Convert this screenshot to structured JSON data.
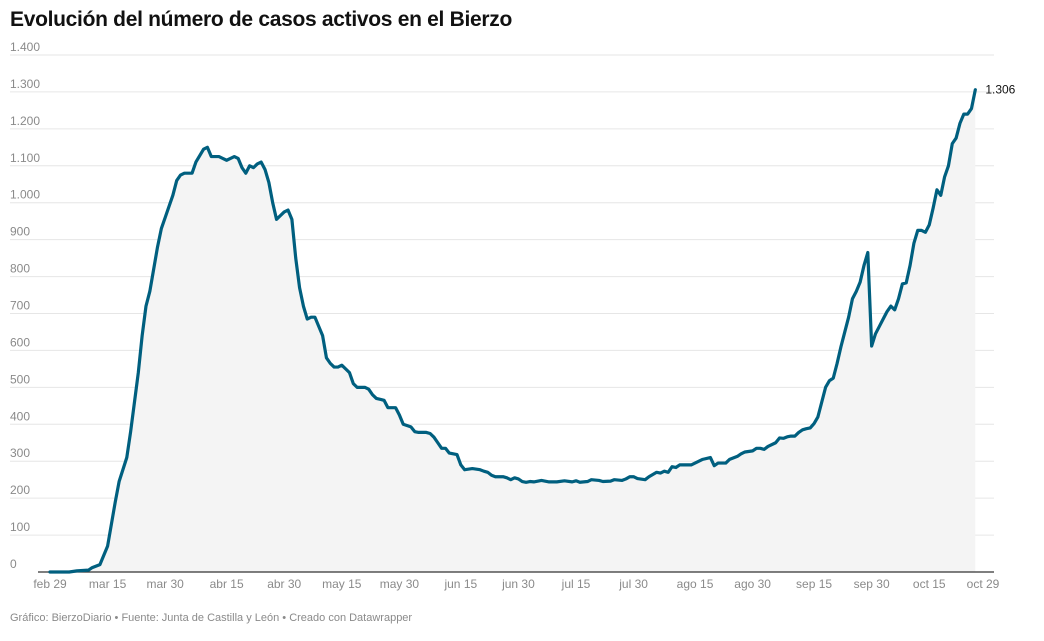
{
  "title": "Evolución del número de casos activos en el Bierzo",
  "footer": {
    "credit": "Gráfico: BierzoDiario",
    "source": "Fuente: Junta de Castilla y León",
    "tool": "Creado con Datawrapper",
    "separator": " • "
  },
  "colors": {
    "line": "#005f7f",
    "area": "#f4f4f4",
    "grid": "#e6e6e6",
    "axis": "#333333",
    "tick_text": "#8a8a8a"
  },
  "chart_data": {
    "type": "area",
    "title": "Evolución del número de casos activos en el Bierzo",
    "xlabel": "",
    "ylabel": "",
    "ylim": [
      0,
      1400
    ],
    "xlim": [
      "2020-02-29",
      "2020-10-29"
    ],
    "grid": true,
    "y_ticks": [
      0,
      100,
      200,
      300,
      400,
      500,
      600,
      700,
      800,
      900,
      1000,
      1100,
      1200,
      1300,
      1400
    ],
    "y_tick_labels": [
      "0",
      "100",
      "200",
      "300",
      "400",
      "500",
      "600",
      "700",
      "800",
      "900",
      "1.000",
      "1.100",
      "1.200",
      "1.300",
      "1.400"
    ],
    "x_ticks": [
      {
        "label": "feb 29",
        "date": "2020-02-29"
      },
      {
        "label": "mar 15",
        "date": "2020-03-15"
      },
      {
        "label": "mar 30",
        "date": "2020-03-30"
      },
      {
        "label": "abr 15",
        "date": "2020-04-15"
      },
      {
        "label": "abr 30",
        "date": "2020-04-30"
      },
      {
        "label": "may 15",
        "date": "2020-05-15"
      },
      {
        "label": "may 30",
        "date": "2020-05-30"
      },
      {
        "label": "jun 15",
        "date": "2020-06-15"
      },
      {
        "label": "jun 30",
        "date": "2020-06-30"
      },
      {
        "label": "jul 15",
        "date": "2020-07-15"
      },
      {
        "label": "jul 30",
        "date": "2020-07-30"
      },
      {
        "label": "ago 15",
        "date": "2020-08-15"
      },
      {
        "label": "ago 30",
        "date": "2020-08-30"
      },
      {
        "label": "sep 15",
        "date": "2020-09-15"
      },
      {
        "label": "sep 30",
        "date": "2020-09-30"
      },
      {
        "label": "oct 15",
        "date": "2020-10-15"
      },
      {
        "label": "oct 29",
        "date": "2020-10-29"
      }
    ],
    "series": [
      {
        "name": "",
        "points": [
          [
            "2020-02-29",
            0
          ],
          [
            "2020-03-05",
            0
          ],
          [
            "2020-03-07",
            3
          ],
          [
            "2020-03-10",
            5
          ],
          [
            "2020-03-11",
            12
          ],
          [
            "2020-03-13",
            20
          ],
          [
            "2020-03-15",
            70
          ],
          [
            "2020-03-16",
            130
          ],
          [
            "2020-03-17",
            190
          ],
          [
            "2020-03-18",
            245
          ],
          [
            "2020-03-20",
            310
          ],
          [
            "2020-03-21",
            380
          ],
          [
            "2020-03-22",
            460
          ],
          [
            "2020-03-23",
            540
          ],
          [
            "2020-03-24",
            640
          ],
          [
            "2020-03-25",
            720
          ],
          [
            "2020-03-26",
            760
          ],
          [
            "2020-03-27",
            820
          ],
          [
            "2020-03-28",
            880
          ],
          [
            "2020-03-29",
            930
          ],
          [
            "2020-03-30",
            960
          ],
          [
            "2020-03-31",
            990
          ],
          [
            "2020-04-01",
            1020
          ],
          [
            "2020-04-02",
            1060
          ],
          [
            "2020-04-03",
            1075
          ],
          [
            "2020-04-04",
            1080
          ],
          [
            "2020-04-06",
            1080
          ],
          [
            "2020-04-07",
            1110
          ],
          [
            "2020-04-09",
            1145
          ],
          [
            "2020-04-10",
            1150
          ],
          [
            "2020-04-11",
            1125
          ],
          [
            "2020-04-13",
            1125
          ],
          [
            "2020-04-14",
            1120
          ],
          [
            "2020-04-15",
            1115
          ],
          [
            "2020-04-16",
            1120
          ],
          [
            "2020-04-17",
            1125
          ],
          [
            "2020-04-18",
            1120
          ],
          [
            "2020-04-19",
            1095
          ],
          [
            "2020-04-20",
            1080
          ],
          [
            "2020-04-21",
            1100
          ],
          [
            "2020-04-22",
            1095
          ],
          [
            "2020-04-23",
            1105
          ],
          [
            "2020-04-24",
            1110
          ],
          [
            "2020-04-25",
            1090
          ],
          [
            "2020-04-26",
            1055
          ],
          [
            "2020-04-27",
            1000
          ],
          [
            "2020-04-28",
            955
          ],
          [
            "2020-04-29",
            965
          ],
          [
            "2020-04-30",
            975
          ],
          [
            "2020-05-01",
            980
          ],
          [
            "2020-05-02",
            955
          ],
          [
            "2020-05-03",
            850
          ],
          [
            "2020-05-04",
            770
          ],
          [
            "2020-05-05",
            720
          ],
          [
            "2020-05-06",
            685
          ],
          [
            "2020-05-07",
            690
          ],
          [
            "2020-05-08",
            690
          ],
          [
            "2020-05-09",
            665
          ],
          [
            "2020-05-10",
            640
          ],
          [
            "2020-05-11",
            580
          ],
          [
            "2020-05-12",
            565
          ],
          [
            "2020-05-13",
            555
          ],
          [
            "2020-05-14",
            555
          ],
          [
            "2020-05-15",
            560
          ],
          [
            "2020-05-16",
            550
          ],
          [
            "2020-05-17",
            540
          ],
          [
            "2020-05-18",
            510
          ],
          [
            "2020-05-19",
            500
          ],
          [
            "2020-05-21",
            500
          ],
          [
            "2020-05-22",
            495
          ],
          [
            "2020-05-23",
            480
          ],
          [
            "2020-05-24",
            470
          ],
          [
            "2020-05-26",
            465
          ],
          [
            "2020-05-27",
            445
          ],
          [
            "2020-05-29",
            445
          ],
          [
            "2020-05-30",
            425
          ],
          [
            "2020-05-31",
            400
          ],
          [
            "2020-06-02",
            393
          ],
          [
            "2020-06-03",
            380
          ],
          [
            "2020-06-04",
            378
          ],
          [
            "2020-06-06",
            378
          ],
          [
            "2020-06-07",
            375
          ],
          [
            "2020-06-08",
            365
          ],
          [
            "2020-06-09",
            350
          ],
          [
            "2020-06-10",
            335
          ],
          [
            "2020-06-11",
            335
          ],
          [
            "2020-06-12",
            322
          ],
          [
            "2020-06-14",
            318
          ],
          [
            "2020-06-15",
            290
          ],
          [
            "2020-06-16",
            277
          ],
          [
            "2020-06-18",
            280
          ],
          [
            "2020-06-20",
            277
          ],
          [
            "2020-06-21",
            273
          ],
          [
            "2020-06-22",
            270
          ],
          [
            "2020-06-23",
            262
          ],
          [
            "2020-06-24",
            258
          ],
          [
            "2020-06-26",
            258
          ],
          [
            "2020-06-27",
            255
          ],
          [
            "2020-06-28",
            250
          ],
          [
            "2020-06-29",
            255
          ],
          [
            "2020-06-30",
            252
          ],
          [
            "2020-07-01",
            245
          ],
          [
            "2020-07-02",
            243
          ],
          [
            "2020-07-03",
            245
          ],
          [
            "2020-07-04",
            244
          ],
          [
            "2020-07-06",
            248
          ],
          [
            "2020-07-08",
            244
          ],
          [
            "2020-07-10",
            244
          ],
          [
            "2020-07-12",
            247
          ],
          [
            "2020-07-14",
            244
          ],
          [
            "2020-07-15",
            247
          ],
          [
            "2020-07-16",
            243
          ],
          [
            "2020-07-18",
            245
          ],
          [
            "2020-07-19",
            250
          ],
          [
            "2020-07-21",
            248
          ],
          [
            "2020-07-22",
            245
          ],
          [
            "2020-07-24",
            246
          ],
          [
            "2020-07-25",
            250
          ],
          [
            "2020-07-27",
            248
          ],
          [
            "2020-07-28",
            252
          ],
          [
            "2020-07-29",
            258
          ],
          [
            "2020-07-30",
            258
          ],
          [
            "2020-07-31",
            253
          ],
          [
            "2020-08-02",
            250
          ],
          [
            "2020-08-03",
            258
          ],
          [
            "2020-08-05",
            270
          ],
          [
            "2020-08-06",
            268
          ],
          [
            "2020-08-07",
            273
          ],
          [
            "2020-08-08",
            270
          ],
          [
            "2020-08-09",
            285
          ],
          [
            "2020-08-10",
            283
          ],
          [
            "2020-08-11",
            290
          ],
          [
            "2020-08-14",
            290
          ],
          [
            "2020-08-15",
            295
          ],
          [
            "2020-08-17",
            305
          ],
          [
            "2020-08-19",
            310
          ],
          [
            "2020-08-20",
            288
          ],
          [
            "2020-08-21",
            295
          ],
          [
            "2020-08-23",
            295
          ],
          [
            "2020-08-24",
            305
          ],
          [
            "2020-08-26",
            313
          ],
          [
            "2020-08-27",
            320
          ],
          [
            "2020-08-28",
            325
          ],
          [
            "2020-08-30",
            328
          ],
          [
            "2020-08-31",
            335
          ],
          [
            "2020-09-01",
            335
          ],
          [
            "2020-09-02",
            332
          ],
          [
            "2020-09-03",
            340
          ],
          [
            "2020-09-05",
            350
          ],
          [
            "2020-09-06",
            363
          ],
          [
            "2020-09-07",
            362
          ],
          [
            "2020-09-08",
            366
          ],
          [
            "2020-09-09",
            368
          ],
          [
            "2020-09-10",
            368
          ],
          [
            "2020-09-11",
            378
          ],
          [
            "2020-09-12",
            385
          ],
          [
            "2020-09-13",
            388
          ],
          [
            "2020-09-14",
            390
          ],
          [
            "2020-09-15",
            402
          ],
          [
            "2020-09-16",
            420
          ],
          [
            "2020-09-17",
            460
          ],
          [
            "2020-09-18",
            500
          ],
          [
            "2020-09-19",
            518
          ],
          [
            "2020-09-20",
            525
          ],
          [
            "2020-09-21",
            565
          ],
          [
            "2020-09-22",
            610
          ],
          [
            "2020-09-23",
            650
          ],
          [
            "2020-09-24",
            690
          ],
          [
            "2020-09-25",
            740
          ],
          [
            "2020-09-26",
            760
          ],
          [
            "2020-09-27",
            785
          ],
          [
            "2020-09-28",
            830
          ],
          [
            "2020-09-29",
            865
          ],
          [
            "2020-09-30",
            612
          ],
          [
            "2020-10-01",
            645
          ],
          [
            "2020-10-02",
            665
          ],
          [
            "2020-10-03",
            685
          ],
          [
            "2020-10-04",
            705
          ],
          [
            "2020-10-05",
            720
          ],
          [
            "2020-10-06",
            710
          ],
          [
            "2020-10-07",
            740
          ],
          [
            "2020-10-08",
            780
          ],
          [
            "2020-10-09",
            783
          ],
          [
            "2020-10-10",
            830
          ],
          [
            "2020-10-11",
            890
          ],
          [
            "2020-10-12",
            925
          ],
          [
            "2020-10-13",
            925
          ],
          [
            "2020-10-14",
            920
          ],
          [
            "2020-10-15",
            940
          ],
          [
            "2020-10-16",
            985
          ],
          [
            "2020-10-17",
            1035
          ],
          [
            "2020-10-18",
            1020
          ],
          [
            "2020-10-19",
            1070
          ],
          [
            "2020-10-20",
            1100
          ],
          [
            "2020-10-21",
            1160
          ],
          [
            "2020-10-22",
            1175
          ],
          [
            "2020-10-23",
            1215
          ],
          [
            "2020-10-24",
            1240
          ],
          [
            "2020-10-25",
            1240
          ],
          [
            "2020-10-26",
            1255
          ],
          [
            "2020-10-27",
            1306
          ]
        ]
      }
    ],
    "annotations": [
      {
        "text": "1.306",
        "date": "2020-10-27",
        "value": 1306
      }
    ]
  }
}
